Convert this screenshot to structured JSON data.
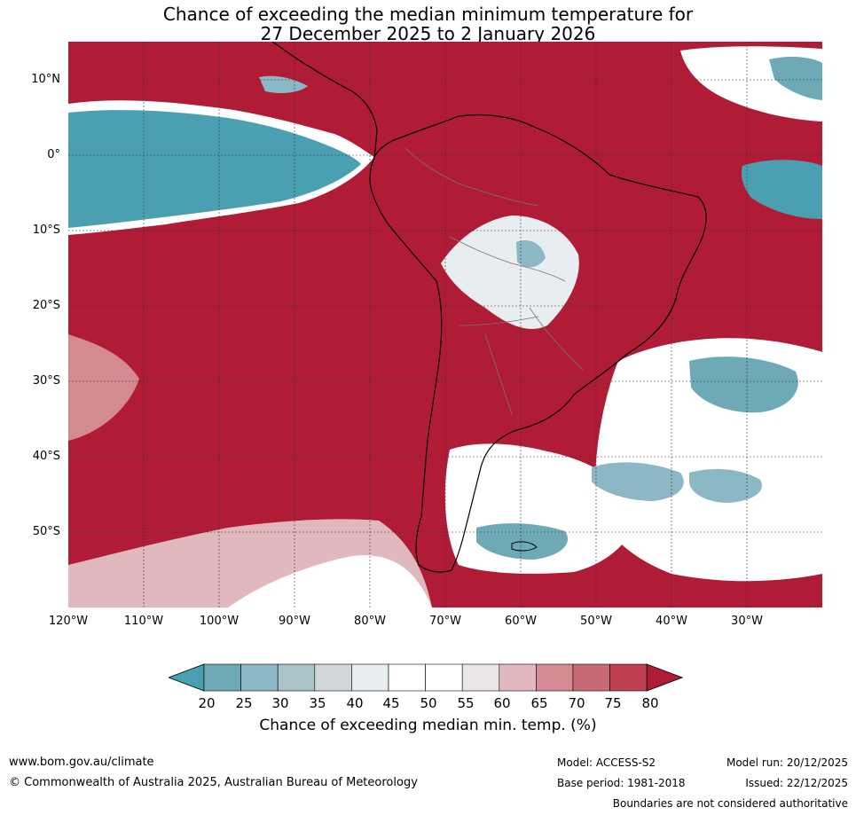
{
  "title_line1": "Chance of exceeding the median minimum temperature for",
  "title_line2": "27 December 2025 to 2 January 2026",
  "lat_labels": [
    "10°N",
    "0°",
    "10°S",
    "20°S",
    "30°S",
    "40°S",
    "50°S"
  ],
  "lon_labels": [
    "120°W",
    "110°W",
    "100°W",
    "90°W",
    "80°W",
    "70°W",
    "60°W",
    "50°W",
    "40°W",
    "30°W"
  ],
  "colorbar": {
    "ticks": [
      "20",
      "25",
      "30",
      "35",
      "40",
      "45",
      "50",
      "55",
      "60",
      "65",
      "70",
      "75",
      "80"
    ],
    "label": "Chance of exceeding median min. temp. (%)",
    "colors": [
      "#4aa0b0",
      "#6eaab6",
      "#8bb8c4",
      "#aac4c8",
      "#d2d8da",
      "#e8eef0",
      "#ffffff",
      "#ffffff",
      "#ebe7e8",
      "#e0b8be",
      "#d48a92",
      "#c86a76",
      "#be4050",
      "#b01c36"
    ]
  },
  "footer": {
    "website": "www.bom.gov.au/climate",
    "copyright": "© Commonwealth of Australia 2025, Australian Bureau of Meteorology",
    "model": "Model: ACCESS-S2",
    "base_period": "Base period: 1981-2018",
    "model_run": "Model run: 20/12/2025",
    "issued": "Issued: 22/12/2025",
    "boundaries_note": "Boundaries are not considered authoritative"
  }
}
